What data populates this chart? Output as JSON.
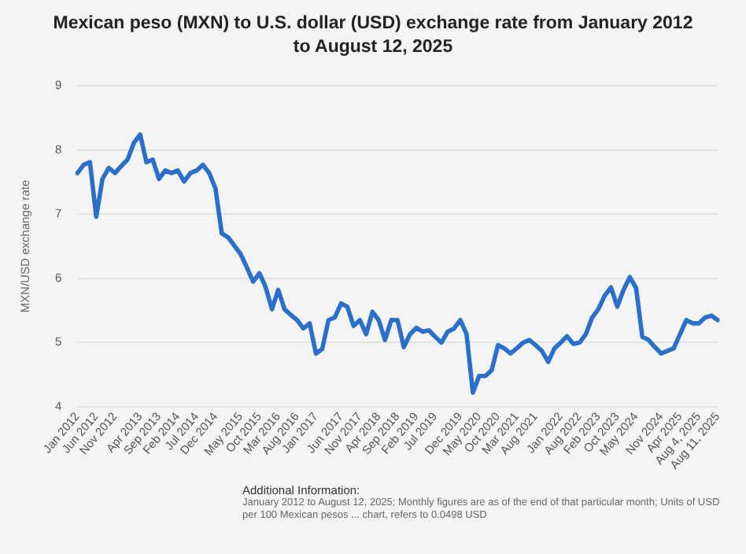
{
  "chart_data": {
    "type": "line",
    "title": "Mexican peso (MXN) to U.S. dollar (USD) exchange rate from January 2012 to August 12, 2025",
    "ylabel": "MXN/USD exchange rate",
    "categories": [
      "Jan 2012",
      null,
      null,
      "Jun 2012",
      null,
      null,
      "Nov 2012",
      null,
      null,
      null,
      "Apr 2013",
      null,
      null,
      "Sep 2013",
      null,
      null,
      "Feb 2014",
      null,
      null,
      "Jul 2014",
      null,
      null,
      "Dec 2014",
      null,
      null,
      null,
      "May 2015",
      null,
      null,
      "Oct 2015",
      null,
      null,
      "Mar 2016",
      null,
      null,
      "Aug 2016",
      null,
      null,
      "Jan 2017",
      null,
      null,
      null,
      "Jun 2017",
      null,
      null,
      "Nov 2017",
      null,
      null,
      "Apr 2018",
      null,
      null,
      "Sep 2018",
      null,
      null,
      "Feb 2019",
      null,
      null,
      "Jul 2019",
      null,
      null,
      null,
      "Dec 2019",
      null,
      null,
      "May 2020",
      null,
      null,
      "Oct 2020",
      null,
      null,
      "Mar 2021",
      null,
      null,
      "Aug 2021",
      null,
      null,
      null,
      "Jan 2022",
      null,
      null,
      "Aug 2022",
      null,
      null,
      "Feb 2023",
      null,
      null,
      "Oct 2023",
      null,
      null,
      "May 2024",
      null,
      null,
      null,
      "Nov 2024",
      null,
      null,
      "Apr 2025",
      null,
      null,
      "Aug 4, 2025",
      null,
      null,
      "Aug 11, 2025"
    ],
    "series": [
      {
        "color": "#2a6fc9",
        "values": [
          7.64,
          7.77,
          7.81,
          6.96,
          7.55,
          7.72,
          7.64,
          7.75,
          7.85,
          8.11,
          8.24,
          7.81,
          7.85,
          7.55,
          7.68,
          7.64,
          7.68,
          7.51,
          7.64,
          7.68,
          7.77,
          7.64,
          7.4,
          6.7,
          6.64,
          6.51,
          6.38,
          6.17,
          5.95,
          6.08,
          5.86,
          5.52,
          5.82,
          5.52,
          5.43,
          5.35,
          5.22,
          5.3,
          4.83,
          4.9,
          5.35,
          5.39,
          5.61,
          5.56,
          5.26,
          5.35,
          5.13,
          5.48,
          5.35,
          5.04,
          5.35,
          5.35,
          4.93,
          5.13,
          5.23,
          5.17,
          5.19,
          5.09,
          5.0,
          5.17,
          5.22,
          5.35,
          5.13,
          4.22,
          4.48,
          4.48,
          4.57,
          4.96,
          4.91,
          4.83,
          4.91,
          5.0,
          5.04,
          4.96,
          4.87,
          4.7,
          4.91,
          5.0,
          5.1,
          4.98,
          5.0,
          5.13,
          5.39,
          5.52,
          5.73,
          5.86,
          5.56,
          5.82,
          6.02,
          5.85,
          5.09,
          5.04,
          4.93,
          4.83,
          4.87,
          4.91,
          5.13,
          5.35,
          5.3,
          5.3,
          5.39,
          5.42,
          5.35
        ]
      }
    ],
    "ylim": [
      4,
      9
    ],
    "yticks": [
      4,
      5,
      6,
      7,
      8,
      9
    ],
    "grid": "y",
    "legend": false,
    "marker": "none",
    "line_style": "solid",
    "annotations": [
      "Additional Information:",
      "January 2012 to August 12, 2025; Monthly figures are as of the end of that particular month; Units of USD per 100 Mexican pesos ... chart, refers to 0.0498 USD"
    ]
  }
}
